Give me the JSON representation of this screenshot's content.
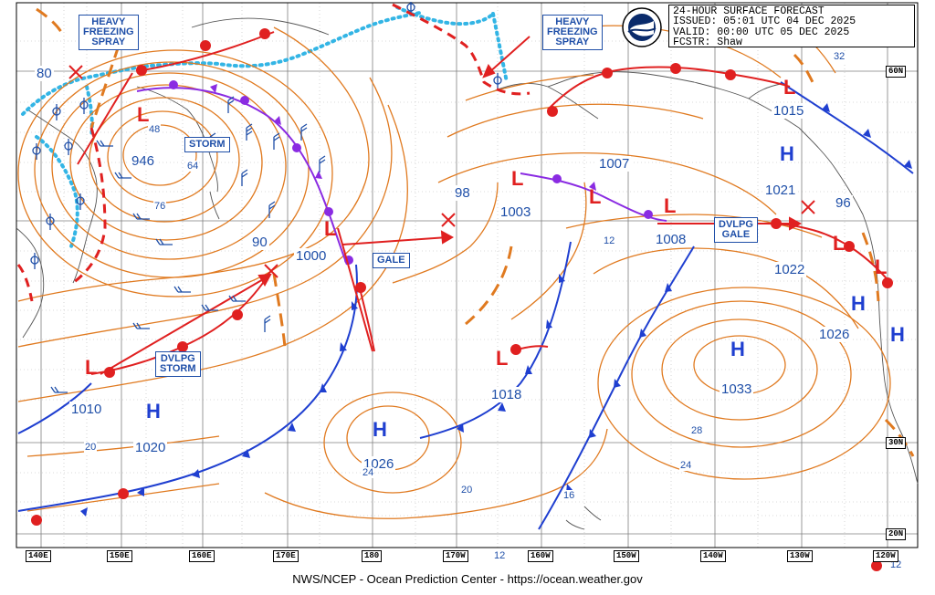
{
  "title_block": {
    "line1": "24-HOUR SURFACE FORECAST",
    "line2": "ISSUED: 05:01 UTC 04 DEC 2025",
    "line3": "VALID:  00:00 UTC 05 DEC 2025",
    "line4": "FCSTR:  Shaw"
  },
  "credit": "NWS/NCEP - Ocean Prediction Center - https://ocean.weather.gov",
  "longitude_labels": [
    "140E",
    "150E",
    "160E",
    "170E",
    "180",
    "170W",
    "160W",
    "150W",
    "140W",
    "130W",
    "120W"
  ],
  "latitude_labels": [
    "60N",
    "30N",
    "20N"
  ],
  "warning_boxes": {
    "heavy_freezing_spray_west": "HEAVY\nFREEZING\nSPRAY",
    "heavy_freezing_spray_east": "HEAVY\nFREEZING\nSPRAY",
    "storm": "STORM",
    "gale_central": "GALE",
    "dvlpg_storm": "DVLPG\nSTORM",
    "dvlpg_gale": "DVLPG\nGALE"
  },
  "pressure_centers": [
    {
      "type": "L",
      "value": "946"
    },
    {
      "type": "L",
      "value": "1000"
    },
    {
      "type": "L",
      "value": "1003"
    },
    {
      "type": "L",
      "value": "1008"
    },
    {
      "type": "L",
      "value": "1018"
    },
    {
      "type": "L",
      "value": "1010"
    },
    {
      "type": "L",
      "value": "1015"
    },
    {
      "type": "H",
      "value": "1020"
    },
    {
      "type": "H",
      "value": "1026"
    },
    {
      "type": "H",
      "value": "1033"
    },
    {
      "type": "H",
      "value": "1021"
    },
    {
      "type": "H",
      "value": "1022"
    },
    {
      "type": "H",
      "value": "1026"
    }
  ],
  "other_values": [
    "80",
    "90",
    "98",
    "1007",
    "96",
    "32",
    "48",
    "64",
    "76",
    "12",
    "20",
    "24",
    "28",
    "16",
    "20",
    "24",
    "12",
    "12"
  ],
  "colors": {
    "isobar": "#e07a20",
    "cold_front": "#1f3fd0",
    "warm_front": "#e02020",
    "occluded_front": "#8a2be2",
    "ice_edge": "#33b5e5",
    "grid": "#7f7f7f",
    "label_text": "#1f4fa8"
  }
}
